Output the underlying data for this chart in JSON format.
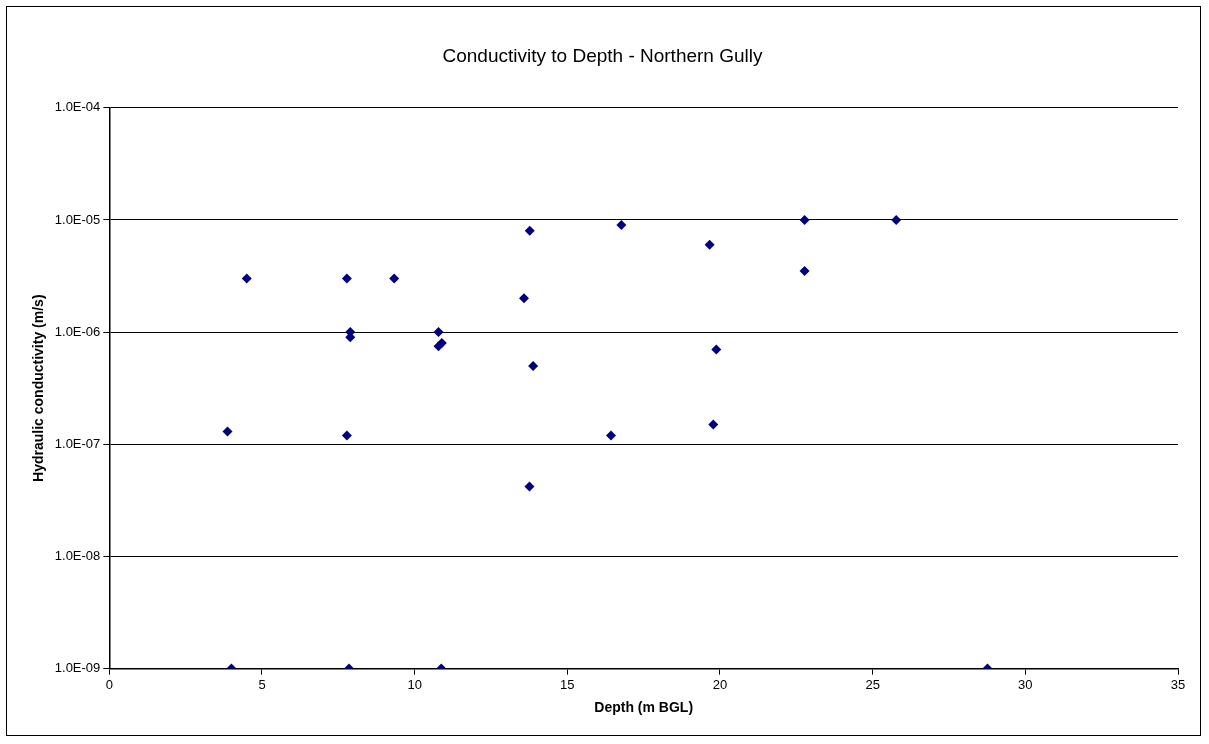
{
  "chart_data": {
    "type": "scatter",
    "title": "Conductivity to Depth - Northern Gully",
    "xlabel": "Depth (m BGL)",
    "ylabel": "Hydraulic conductivity (m/s)",
    "log": "y",
    "grid": "y",
    "marker": "diamond",
    "legend": false,
    "xlim": [
      0,
      35
    ],
    "xticks": [
      0,
      5,
      10,
      15,
      20,
      25,
      30,
      35
    ],
    "ylim": [
      1e-09,
      0.0001
    ],
    "yticks": [
      {
        "value": 1e-09,
        "label": "1.0E-09"
      },
      {
        "value": 1e-08,
        "label": "1.0E-08"
      },
      {
        "value": 1e-07,
        "label": "1.0E-07"
      },
      {
        "value": 1e-06,
        "label": "1.0E-06"
      },
      {
        "value": 1e-05,
        "label": "1.0E-05"
      },
      {
        "value": 0.0001,
        "label": "1.0E-04"
      }
    ],
    "series": [
      {
        "color": "#000080",
        "x": [
          4.5,
          7.78,
          9.33,
          7.89,
          7.89,
          10.78,
          10.89,
          10.78,
          3.87,
          7.78,
          13.77,
          16.77,
          19.66,
          22.77,
          25.77,
          22.77,
          13.58,
          13.88,
          19.88,
          16.43,
          19.78,
          13.76,
          4.0,
          7.85,
          10.87,
          28.76
        ],
        "values": [
          3e-06,
          3e-06,
          3e-06,
          1e-06,
          9e-07,
          1e-06,
          8e-07,
          7.5e-07,
          1.3e-07,
          1.2e-07,
          8e-06,
          9e-06,
          6e-06,
          1e-05,
          1e-05,
          3.5e-06,
          2e-06,
          5e-07,
          7e-07,
          1.2e-07,
          1.5e-07,
          4.2e-08,
          1e-09,
          1e-09,
          1e-09,
          1e-09
        ]
      }
    ]
  }
}
